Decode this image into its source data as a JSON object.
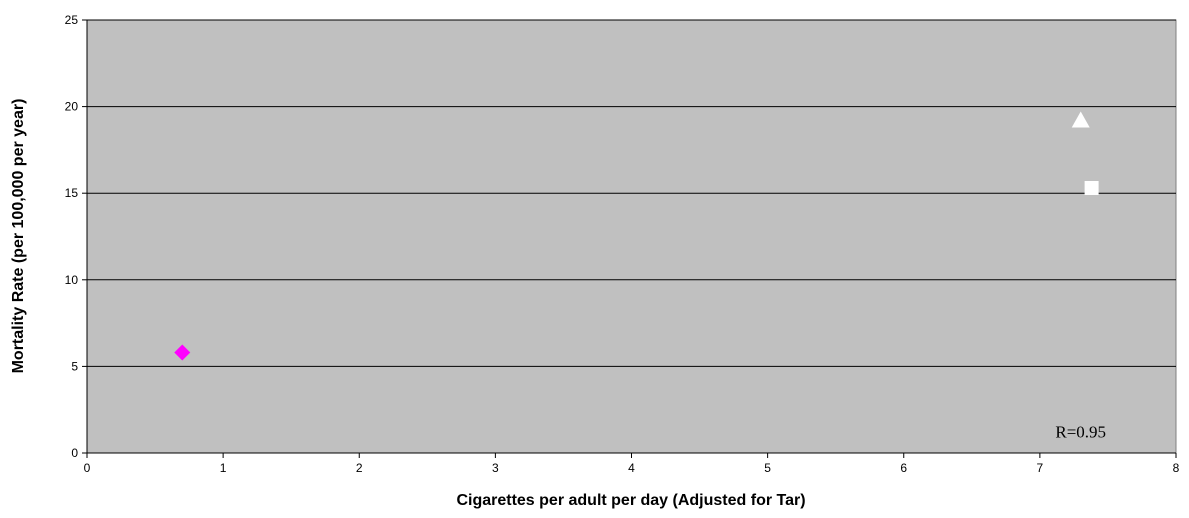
{
  "chart_data": {
    "type": "scatter",
    "title": "",
    "xlabel": "Cigarettes per adult per day (Adjusted for Tar)",
    "ylabel": "Mortality Rate (per 100,000 per year)",
    "xlim": [
      0,
      8
    ],
    "ylim": [
      0,
      25
    ],
    "x_ticks": [
      0,
      1,
      2,
      3,
      4,
      5,
      6,
      7,
      8
    ],
    "y_ticks": [
      0,
      5,
      10,
      15,
      20,
      25
    ],
    "grid": "horizontal",
    "plot_background": "#c0c0c0",
    "points": [
      {
        "x": 0.7,
        "y": 5.8,
        "marker": "diamond",
        "color": "#ff00ff"
      },
      {
        "x": 7.3,
        "y": 19.2,
        "marker": "triangle",
        "color": "#ffffff"
      },
      {
        "x": 7.38,
        "y": 15.3,
        "marker": "square",
        "color": "#ffffff"
      }
    ],
    "annotation": {
      "text": "R=0.95",
      "x": 7.3,
      "y": 0.9
    }
  }
}
